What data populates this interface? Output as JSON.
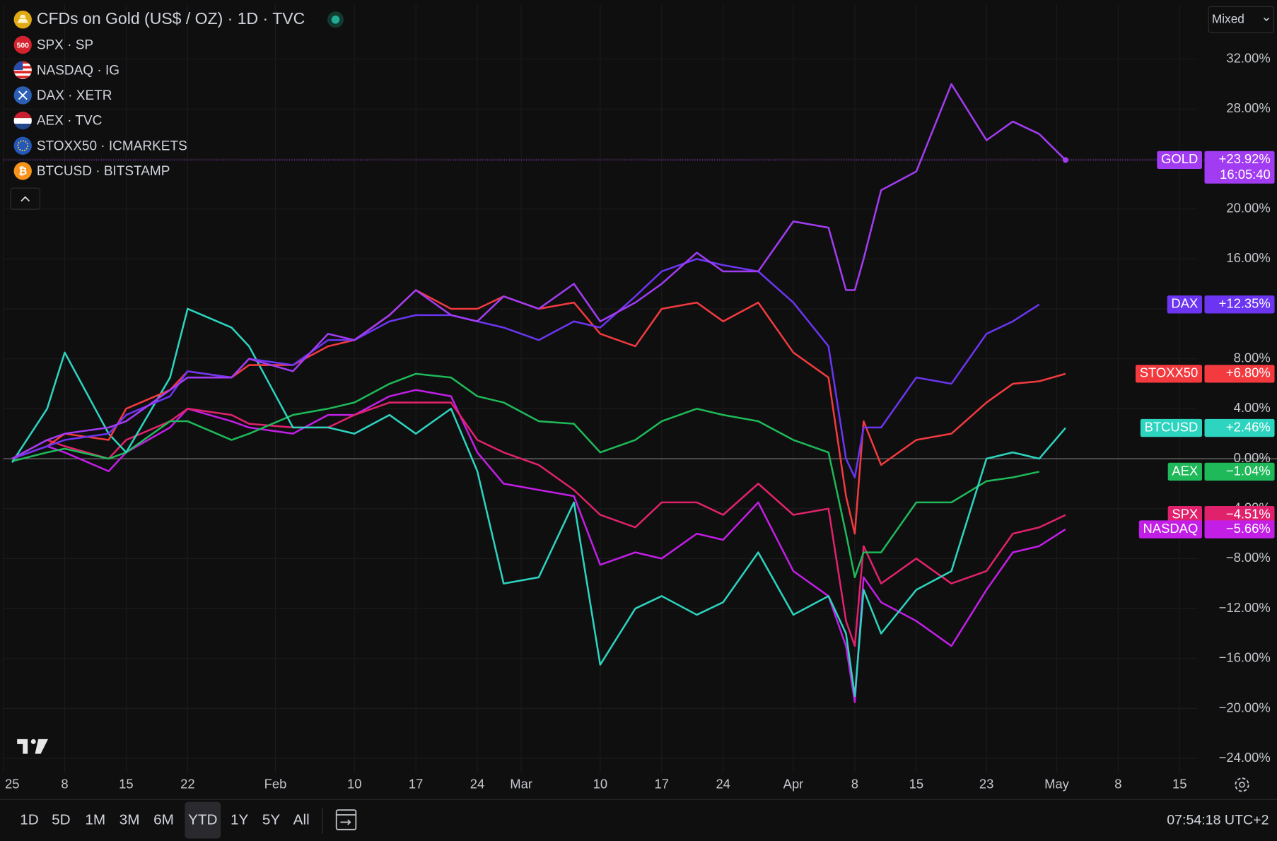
{
  "chart_data": {
    "type": "line",
    "legend": [
      {
        "label": "CFDs on Gold (US$ / OZ) · 1D · TVC"
      },
      {
        "label": "SPX · SP",
        "icon_text": "500"
      },
      {
        "label": "NASDAQ · IG"
      },
      {
        "label": "DAX · XETR"
      },
      {
        "label": "AEX · TVC"
      },
      {
        "label": "STOXX50 · ICMARKETS"
      },
      {
        "label": "BTCUSD · BITSTAMP"
      }
    ],
    "x": [
      2,
      6,
      8,
      13,
      15,
      20,
      22,
      27,
      29,
      34,
      38,
      41,
      45,
      48,
      52,
      55,
      58,
      62,
      66,
      69,
      73,
      76,
      80,
      83,
      87,
      91,
      95,
      97,
      98,
      99,
      101,
      105,
      109,
      113,
      116,
      119,
      122
    ],
    "xlim": [
      1,
      137
    ],
    "xticks": [
      {
        "value": 1,
        "label": "25"
      },
      {
        "value": 8,
        "label": "8"
      },
      {
        "value": 15,
        "label": "15"
      },
      {
        "value": 22,
        "label": "22"
      },
      {
        "value": 32,
        "label": "Feb"
      },
      {
        "value": 41,
        "label": "10"
      },
      {
        "value": 48,
        "label": "17"
      },
      {
        "value": 55,
        "label": "24"
      },
      {
        "value": 60,
        "label": "Mar"
      },
      {
        "value": 69,
        "label": "10"
      },
      {
        "value": 76,
        "label": "17"
      },
      {
        "value": 83,
        "label": "24"
      },
      {
        "value": 91,
        "label": "Apr"
      },
      {
        "value": 98,
        "label": "8"
      },
      {
        "value": 105,
        "label": "15"
      },
      {
        "value": 113,
        "label": "23"
      },
      {
        "value": 121,
        "label": "May"
      },
      {
        "value": 128,
        "label": "8"
      },
      {
        "value": 135,
        "label": "15"
      }
    ],
    "ylim": [
      -25.2,
      36.4
    ],
    "yticks": [
      {
        "value": 32,
        "label": "32.00%"
      },
      {
        "value": 28,
        "label": "28.00%"
      },
      {
        "value": 24,
        "label": "24.00%"
      },
      {
        "value": 20,
        "label": "20.00%"
      },
      {
        "value": 16,
        "label": "16.00%"
      },
      {
        "value": 12,
        "label": "12.00%"
      },
      {
        "value": 8,
        "label": "8.00%"
      },
      {
        "value": 4,
        "label": "4.00%"
      },
      {
        "value": 0,
        "label": "0.00%"
      },
      {
        "value": -4,
        "label": "−4.00%"
      },
      {
        "value": -8,
        "label": "−8.00%"
      },
      {
        "value": -12,
        "label": "−12.00%"
      },
      {
        "value": -16,
        "label": "−16.00%"
      },
      {
        "value": -20,
        "label": "−20.00%"
      },
      {
        "value": -24,
        "label": "−24.00%"
      }
    ],
    "grid": true,
    "series": [
      {
        "name": "GOLD",
        "color": "#a23cf2",
        "badge_label": "+23.92%",
        "badge_time": "16:05:40",
        "values": [
          0,
          1.5,
          2,
          2.5,
          3,
          5.5,
          6.5,
          6.5,
          8,
          7,
          10,
          9.5,
          11.5,
          13.5,
          11.5,
          11,
          13,
          12,
          14,
          11,
          12.5,
          14,
          16.5,
          15,
          15,
          19,
          18.5,
          13.5,
          13.5,
          16,
          21.5,
          23,
          30,
          25.5,
          27,
          26,
          23.92
        ]
      },
      {
        "name": "DAX",
        "color": "#6b35f2",
        "badge_label": "+12.35%",
        "values": [
          0,
          1,
          1.5,
          2,
          3.5,
          5,
          7,
          6.5,
          8,
          7.5,
          9.5,
          9.5,
          11,
          11.5,
          11.5,
          11,
          10.5,
          9.5,
          11,
          10.5,
          13,
          15,
          16,
          15.5,
          15,
          12.5,
          9,
          0,
          -1.5,
          2.5,
          2.5,
          6.5,
          6,
          10,
          11,
          12.35,
          null
        ]
      },
      {
        "name": "STOXX50",
        "color": "#f23a3f",
        "badge_label": "+6.80%",
        "values": [
          0,
          1,
          2,
          1.5,
          4,
          5.5,
          7,
          6.5,
          7.5,
          7.5,
          9,
          9.5,
          11.5,
          13.5,
          12,
          12,
          13,
          12,
          12.5,
          10,
          9,
          12,
          12.5,
          11,
          12.5,
          8.5,
          6.5,
          -3,
          -6,
          3,
          -0.5,
          1.5,
          2,
          4.5,
          6,
          6.2,
          6.8
        ]
      },
      {
        "name": "BTCUSD",
        "color": "#2dd4bf",
        "badge_label": "+2.46%",
        "values": [
          -0.3,
          4,
          8.5,
          2,
          0.5,
          6.5,
          12,
          10.5,
          9,
          2.5,
          2.5,
          2,
          3.5,
          2,
          4,
          -1,
          -10,
          -9.5,
          -3.5,
          -16.5,
          -12,
          -11,
          -12.5,
          -11.5,
          -7.5,
          -12.5,
          -11,
          -14,
          -19,
          -10.5,
          -14,
          -10.5,
          -9,
          0,
          0.5,
          0,
          2.46
        ]
      },
      {
        "name": "AEX",
        "color": "#1fb95a",
        "badge_label": "−1.04%",
        "values": [
          -0.2,
          0.5,
          0.8,
          0,
          0.5,
          3,
          3,
          1.5,
          2,
          3.5,
          4,
          4.5,
          6,
          6.8,
          6.5,
          5,
          4.5,
          3,
          2.8,
          0.5,
          1.5,
          3,
          4,
          3.5,
          3,
          1.5,
          0.5,
          -6,
          -9.5,
          -7.5,
          -7.5,
          -3.5,
          -3.5,
          -1.8,
          -1.5,
          -1.04,
          null
        ]
      },
      {
        "name": "SPX",
        "color": "#e0226c",
        "badge_label": "−4.51%",
        "values": [
          0,
          1.5,
          1,
          0,
          1.5,
          3,
          4,
          3.5,
          2.8,
          2.5,
          2.5,
          3.5,
          4.5,
          4.5,
          4.5,
          1.5,
          0.5,
          -0.5,
          -2.5,
          -4.5,
          -5.5,
          -3.5,
          -3.5,
          -4.5,
          -2,
          -4.5,
          -4,
          -13,
          -15,
          -7,
          -10,
          -8,
          -10,
          -9,
          -6,
          -5.5,
          -4.51
        ]
      },
      {
        "name": "NASDAQ",
        "color": "#c21ee6",
        "badge_label": "−5.66%",
        "values": [
          0,
          1,
          0.5,
          -1,
          0.5,
          2.5,
          4,
          3,
          2.5,
          2,
          3.5,
          3.5,
          5,
          5.5,
          5,
          0.5,
          -2,
          -2.5,
          -3,
          -8.5,
          -7.5,
          -8,
          -6,
          -6.5,
          -3.5,
          -9,
          -11,
          -15,
          -19.5,
          -9.5,
          -11.5,
          -13,
          -15,
          -10.5,
          -7.5,
          -7,
          -5.66
        ]
      }
    ]
  },
  "ui": {
    "scale_mode": "Mixed",
    "periods": [
      "1D",
      "5D",
      "1M",
      "3M",
      "6M",
      "YTD",
      "1Y",
      "5Y",
      "All"
    ],
    "active_period_index": 5,
    "clock": "07:54:18 UTC+2"
  }
}
